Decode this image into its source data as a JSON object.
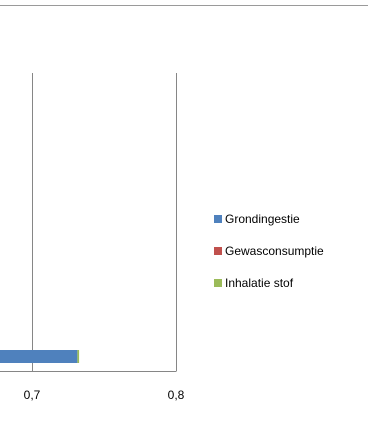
{
  "chart_data": {
    "type": "bar",
    "orientation": "horizontal",
    "stacked": true,
    "title": "",
    "xlabel": "",
    "ylabel": "",
    "x_visible_range": [
      0.683,
      0.8
    ],
    "x_ticks": [
      {
        "value": 0.7,
        "label": "0,7"
      },
      {
        "value": 0.8,
        "label": "0,8"
      }
    ],
    "grid": "vertical gridlines",
    "legend_position": "right",
    "categories": [
      ""
    ],
    "series": [
      {
        "name": "Grondingestie",
        "color": "#4f81bd",
        "values": [
          0.7315
        ]
      },
      {
        "name": "Gewasconsumptie",
        "color": "#c0504d",
        "values": [
          0.0
        ]
      },
      {
        "name": "Inhalatie stof",
        "color": "#9bbb59",
        "values": [
          0.0012
        ]
      }
    ]
  }
}
